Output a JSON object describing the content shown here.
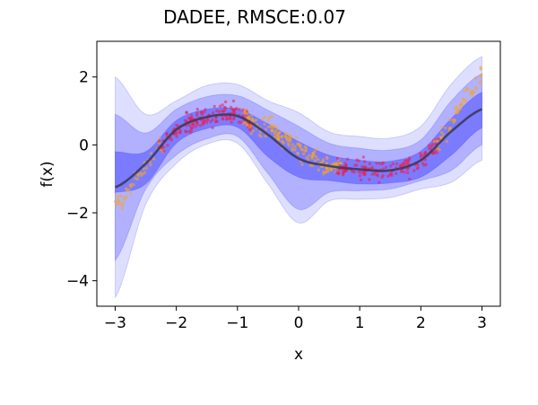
{
  "chart_data": {
    "type": "area",
    "title": "DADEE, RMSCE:0.07",
    "xlabel": "x",
    "ylabel": "f(x)",
    "xlim": [
      -3.3,
      3.3
    ],
    "ylim": [
      -4.75,
      3.05
    ],
    "xticks": [
      -3,
      -2,
      -1,
      0,
      1,
      2,
      3
    ],
    "xtick_labels": [
      "−3",
      "−2",
      "−1",
      "0",
      "1",
      "2",
      "3"
    ],
    "yticks": [
      -4,
      -2,
      0,
      2
    ],
    "ytick_labels": [
      "−4",
      "−2",
      "0",
      "2"
    ],
    "grid": false,
    "colors": {
      "mean_line": "#3b3b5c",
      "band": "#0000ff",
      "in_domain_points": "#ee1c4c",
      "ood_points": "#f5a623"
    },
    "x": [
      -3.0,
      -2.5,
      -2.0,
      -1.5,
      -1.0,
      -0.5,
      0.0,
      0.5,
      1.0,
      1.5,
      2.0,
      2.5,
      3.0
    ],
    "series": [
      {
        "values": [
          -1.25,
          -0.55,
          0.45,
          0.82,
          0.85,
          0.3,
          -0.4,
          -0.62,
          -0.72,
          -0.75,
          -0.45,
          0.4,
          1.05
        ]
      }
    ],
    "bands": [
      {
        "level": 1,
        "lower": [
          -1.4,
          -1.15,
          0.05,
          0.48,
          0.52,
          -0.35,
          -0.95,
          -1.05,
          -1.15,
          -1.12,
          -0.95,
          -0.3,
          0.5
        ],
        "upper": [
          -0.2,
          -0.2,
          0.72,
          1.05,
          1.05,
          0.62,
          0.1,
          -0.3,
          -0.45,
          -0.48,
          -0.18,
          0.78,
          1.55
        ]
      },
      {
        "level": 2,
        "lower": [
          -3.4,
          -1.3,
          -0.3,
          0.18,
          0.25,
          -0.85,
          -1.9,
          -1.4,
          -1.35,
          -1.3,
          -1.05,
          -0.75,
          0.0
        ],
        "upper": [
          0.9,
          0.35,
          1.05,
          1.42,
          1.45,
          1.02,
          0.55,
          0.05,
          -0.1,
          -0.15,
          0.15,
          1.3,
          2.1
        ]
      },
      {
        "level": 3,
        "lower": [
          -4.5,
          -1.75,
          -0.55,
          0.02,
          0.05,
          -1.15,
          -2.3,
          -1.65,
          -1.6,
          -1.55,
          -1.3,
          -1.1,
          -0.45
        ],
        "upper": [
          2.0,
          0.9,
          1.3,
          1.75,
          1.78,
          1.3,
          0.95,
          0.38,
          0.25,
          0.2,
          0.55,
          1.8,
          2.6
        ]
      }
    ],
    "scatter_points": [
      {
        "name": "ood",
        "x_range": [
          -3.0,
          -2.2
        ],
        "count": 50,
        "spread": 0.28
      },
      {
        "name": "in_domain",
        "x_range": [
          -2.3,
          -0.75
        ],
        "count": 170,
        "spread": 0.3
      },
      {
        "name": "ood",
        "x_range": [
          -0.9,
          0.7
        ],
        "count": 170,
        "spread": 0.3
      },
      {
        "name": "in_domain",
        "x_range": [
          0.6,
          2.3
        ],
        "count": 160,
        "spread": 0.3
      },
      {
        "name": "ood",
        "x_range": [
          2.2,
          3.0
        ],
        "count": 60,
        "spread": 0.28
      }
    ]
  }
}
